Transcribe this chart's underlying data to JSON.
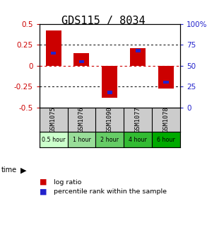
{
  "title": "GDS115 / 8034",
  "samples": [
    "GSM1075",
    "GSM1076",
    "GSM1090",
    "GSM1077",
    "GSM1078"
  ],
  "time_labels": [
    "0.5 hour",
    "1 hour",
    "2 hour",
    "4 hour",
    "6 hour"
  ],
  "log_ratios": [
    0.42,
    0.15,
    -0.38,
    0.21,
    -0.27
  ],
  "percentile_ranks_pct": [
    65,
    55,
    18,
    68,
    30
  ],
  "ylim": [
    -0.5,
    0.5
  ],
  "yticks_left": [
    -0.5,
    -0.25,
    0,
    0.25,
    0.5
  ],
  "yticks_right_vals": [
    -0.5,
    -0.25,
    0.0,
    0.25,
    0.5
  ],
  "yticks_right_labels": [
    "0",
    "25",
    "50",
    "75",
    "100%"
  ],
  "red_color": "#cc0000",
  "blue_color": "#2222cc",
  "bg_color": "#ffffff",
  "zero_line_color": "#cc0000",
  "title_fontsize": 11,
  "tick_fontsize": 7.5,
  "time_colors": [
    "#ccffcc",
    "#99dd99",
    "#66cc66",
    "#33bb33",
    "#00aa00"
  ],
  "sample_bg": "#cccccc"
}
